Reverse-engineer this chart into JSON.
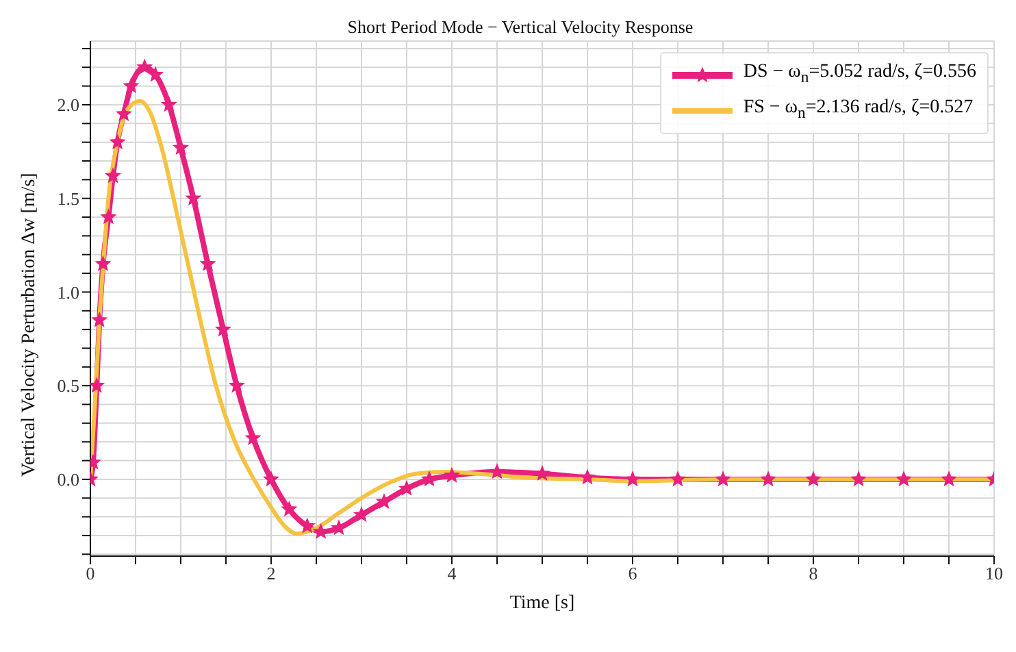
{
  "chart_data": {
    "type": "line",
    "title": "Short Period Mode − Vertical Velocity Response",
    "xlabel": "Time [s]",
    "ylabel": "Vertical Velocity Perturbation Δw [m/s]",
    "xlim": [
      0,
      10
    ],
    "xticks": [
      0,
      {
        "value": 0.5,
        "label": null
      },
      {
        "value": 1,
        "label": null
      },
      {
        "value": 1.5,
        "label": null
      },
      2,
      {
        "value": 2.5,
        "label": null
      },
      {
        "value": 3,
        "label": null
      },
      {
        "value": 3.5,
        "label": null
      },
      4,
      {
        "value": 4.5,
        "label": null
      },
      {
        "value": 5,
        "label": null
      },
      {
        "value": 5.5,
        "label": null
      },
      6,
      {
        "value": 6.5,
        "label": null
      },
      {
        "value": 7,
        "label": null
      },
      {
        "value": 7.5,
        "label": null
      },
      8,
      {
        "value": 8.5,
        "label": null
      },
      {
        "value": 9,
        "label": null
      },
      {
        "value": 9.5,
        "label": null
      },
      10
    ],
    "ylim": [
      -0.41,
      2.34
    ],
    "yticks": [
      {
        "value": -0.4,
        "label": null
      },
      {
        "value": -0.3,
        "label": null
      },
      {
        "value": -0.2,
        "label": null
      },
      {
        "value": -0.1,
        "label": null
      },
      {
        "value": 0,
        "label": "0.0"
      },
      {
        "value": 0.1,
        "label": null
      },
      {
        "value": 0.2,
        "label": null
      },
      {
        "value": 0.3,
        "label": null
      },
      {
        "value": 0.4,
        "label": null
      },
      0.5,
      {
        "value": 0.6,
        "label": null
      },
      {
        "value": 0.7,
        "label": null
      },
      {
        "value": 0.8,
        "label": null
      },
      {
        "value": 0.9,
        "label": null
      },
      {
        "value": 1,
        "label": "1.0"
      },
      {
        "value": 1.1,
        "label": null
      },
      {
        "value": 1.2,
        "label": null
      },
      {
        "value": 1.3,
        "label": null
      },
      {
        "value": 1.4,
        "label": null
      },
      1.5,
      {
        "value": 1.6,
        "label": null
      },
      {
        "value": 1.7,
        "label": null
      },
      {
        "value": 1.8,
        "label": null
      },
      {
        "value": 1.9,
        "label": null
      },
      {
        "value": 2,
        "label": "2.0"
      },
      {
        "value": 2.1,
        "label": null
      },
      {
        "value": 2.2,
        "label": null
      },
      {
        "value": 2.3,
        "label": null
      }
    ],
    "grid": true,
    "legend": "top right",
    "line_style": "solid",
    "series": [
      {
        "name": "DS − ω$_{n}$=5.052 rad/s, ζ=0.556",
        "color": "#e8207e",
        "marker": "star",
        "x": [
          0,
          0.03,
          0.07,
          0.1,
          0.14,
          0.2,
          0.25,
          0.3,
          0.37,
          0.45,
          0.6,
          0.72,
          0.87,
          1.0,
          1.14,
          1.3,
          1.47,
          1.62,
          1.8,
          2.0,
          2.2,
          2.4,
          2.55,
          2.75,
          3.0,
          3.25,
          3.5,
          3.75,
          4.0,
          4.5,
          5.0,
          5.5,
          6.0,
          6.5,
          7,
          7.5,
          8,
          8.5,
          9,
          9.5,
          10
        ],
        "values": [
          0,
          0.09,
          0.5,
          0.85,
          1.15,
          1.4,
          1.62,
          1.8,
          1.95,
          2.1,
          2.2,
          2.16,
          2.0,
          1.77,
          1.5,
          1.15,
          0.8,
          0.5,
          0.22,
          0.0,
          -0.16,
          -0.25,
          -0.28,
          -0.26,
          -0.19,
          -0.12,
          -0.05,
          0.0,
          0.02,
          0.04,
          0.03,
          0.01,
          0.0,
          0.0,
          0.0,
          0.0,
          0.0,
          0.0,
          0.0,
          0.0,
          0.0
        ]
      },
      {
        "name": "FS − ω$_{n}$=2.136 rad/s, ζ=0.527",
        "color": "#f5c242",
        "marker": "none",
        "x": [
          0,
          0.05,
          0.1,
          0.15,
          0.2,
          0.3,
          0.4,
          0.55,
          0.65,
          0.8,
          0.92,
          1.08,
          1.24,
          1.39,
          1.6,
          1.81,
          2.0,
          2.15,
          2.28,
          2.5,
          2.75,
          3.0,
          3.3,
          3.6,
          3.9,
          4.3,
          4.8,
          5.5,
          6,
          7,
          8,
          9,
          10
        ],
        "values": [
          0,
          0.4,
          0.85,
          1.2,
          1.5,
          1.8,
          1.97,
          2.02,
          1.97,
          1.75,
          1.5,
          1.15,
          0.8,
          0.5,
          0.2,
          0.0,
          -0.15,
          -0.25,
          -0.29,
          -0.26,
          -0.18,
          -0.1,
          -0.02,
          0.03,
          0.04,
          0.03,
          0.01,
          0.0,
          -0.01,
          0.0,
          0.0,
          0.0,
          0.0
        ]
      }
    ]
  }
}
